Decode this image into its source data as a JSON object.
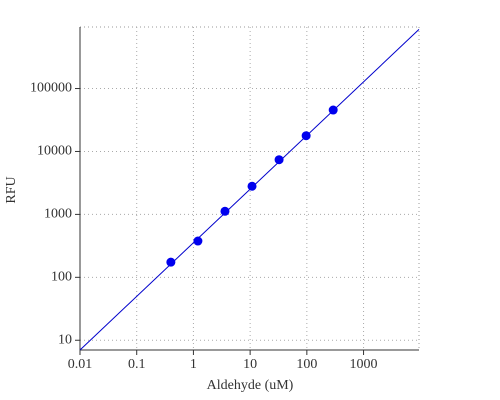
{
  "chart_data": {
    "type": "scatter",
    "x_label": "Aldehyde (uM)",
    "y_label": "RFU",
    "xscale": "log",
    "yscale": "log",
    "grid": true,
    "xlim": [
      0.01,
      9500
    ],
    "ylim": [
      7,
      950000
    ],
    "xticks": [
      0.01,
      0.1,
      1,
      10,
      100,
      1000
    ],
    "yticks": [
      10,
      100,
      1000,
      10000,
      100000
    ],
    "series": [
      {
        "color": "#0000ee",
        "x": [
          0.4,
          1.2,
          3.6,
          10.8,
          32.4,
          97.2,
          291.6
        ],
        "values": [
          174,
          377,
          1120,
          2800,
          7400,
          17800,
          45500
        ]
      }
    ],
    "fit_line": {
      "color": "#0000cc",
      "x": [
        0.01,
        9500
      ],
      "values": [
        7,
        870000
      ]
    }
  }
}
